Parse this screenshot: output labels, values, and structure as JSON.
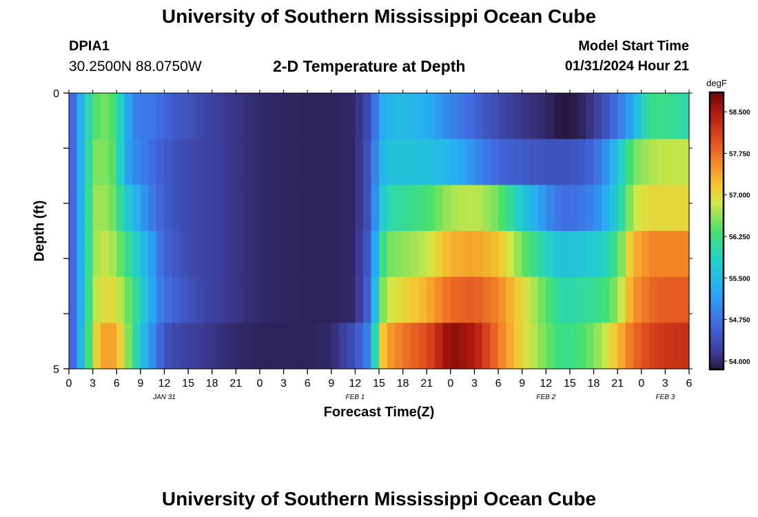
{
  "header": {
    "title": "University of Southern Mississippi Ocean Cube",
    "station": "DPIA1",
    "coords": "30.2500N  88.0750W",
    "subtitle": "2-D Temperature at Depth",
    "start_label": "Model Start Time",
    "start_value": "01/31/2024 Hour 21"
  },
  "footer": {
    "title": "University of Southern Mississippi Ocean Cube"
  },
  "chart_data": {
    "type": "heatmap",
    "title": "2-D Temperature at Depth",
    "xlabel": "Forecast Time(Z)",
    "ylabel": "Depth (ft)",
    "x_tick_labels": [
      "0",
      "3",
      "6",
      "9",
      "12",
      "15",
      "18",
      "21",
      "0",
      "3",
      "6",
      "9",
      "12",
      "15",
      "18",
      "21",
      "0",
      "3",
      "6",
      "9",
      "12",
      "15",
      "18",
      "21",
      "0",
      "3",
      "6"
    ],
    "date_labels": [
      {
        "label": "JAN 31",
        "at_tick": 4
      },
      {
        "label": "FEB 1",
        "at_tick": 12
      },
      {
        "label": "FEB 2",
        "at_tick": 20
      },
      {
        "label": "FEB 3",
        "at_tick": 25
      }
    ],
    "y_tick_labels": [
      "0",
      "",
      "",
      "",
      "",
      "5"
    ],
    "depth_range": [
      0,
      5
    ],
    "forecast_hours_range": [
      0,
      78
    ],
    "colorbar": {
      "unit": "degF",
      "min": 53.85,
      "max": 58.85,
      "ticks": [
        54.0,
        54.75,
        55.5,
        56.25,
        57.0,
        57.75,
        58.5
      ],
      "tick_labels": [
        "54.000",
        "54.750",
        "55.500",
        "56.250",
        "57.000",
        "57.750",
        "58.500"
      ]
    },
    "forecast_hour_anchors": [
      0,
      1,
      2,
      3,
      4,
      5,
      6,
      7,
      8,
      9,
      10,
      11,
      12,
      15,
      18,
      21,
      24,
      30,
      33,
      36,
      38,
      39,
      40,
      42,
      45,
      48,
      51,
      54,
      57,
      60,
      62,
      63,
      65,
      67,
      69,
      71,
      72,
      73,
      75,
      78
    ],
    "layers": [
      {
        "depth": "0-1",
        "values": [
          54.3,
          55.0,
          55.7,
          56.3,
          56.5,
          56.5,
          56.2,
          55.5,
          54.9,
          54.8,
          54.8,
          54.75,
          54.6,
          54.4,
          54.2,
          54.1,
          54.0,
          53.95,
          53.95,
          54.0,
          54.4,
          55.1,
          55.4,
          55.5,
          55.3,
          54.9,
          54.6,
          54.3,
          54.1,
          54.0,
          53.85,
          53.85,
          54.0,
          54.3,
          54.7,
          55.3,
          55.8,
          56.2,
          56.2,
          56.0
        ]
      },
      {
        "depth": "1-2",
        "values": [
          54.3,
          55.0,
          55.7,
          56.5,
          56.6,
          56.5,
          56.3,
          55.3,
          55.0,
          54.9,
          54.75,
          54.6,
          54.5,
          54.3,
          54.2,
          54.1,
          54.0,
          53.95,
          53.95,
          54.0,
          54.5,
          55.3,
          55.6,
          55.6,
          55.6,
          55.4,
          55.0,
          54.6,
          54.5,
          54.4,
          54.4,
          54.4,
          54.5,
          54.8,
          55.6,
          56.5,
          56.6,
          56.7,
          56.8,
          56.8
        ]
      },
      {
        "depth": "2-3",
        "values": [
          54.3,
          55.0,
          55.7,
          56.6,
          56.7,
          56.6,
          56.4,
          55.8,
          55.5,
          55.2,
          54.9,
          54.7,
          54.5,
          54.3,
          54.2,
          54.1,
          54.0,
          53.95,
          53.95,
          54.0,
          54.5,
          55.5,
          56.0,
          56.1,
          56.3,
          56.7,
          56.8,
          56.5,
          55.7,
          55.0,
          54.7,
          54.7,
          54.8,
          55.1,
          55.8,
          56.8,
          56.9,
          57.0,
          57.0,
          57.0
        ]
      },
      {
        "depth": "3-4",
        "values": [
          54.3,
          55.0,
          55.7,
          56.6,
          56.8,
          56.8,
          56.6,
          56.3,
          56.0,
          55.6,
          55.3,
          54.9,
          54.6,
          54.3,
          54.2,
          54.1,
          54.0,
          53.95,
          53.95,
          54.0,
          54.6,
          55.9,
          56.5,
          56.6,
          56.8,
          57.3,
          57.4,
          57.2,
          56.5,
          55.9,
          55.6,
          55.6,
          55.7,
          55.8,
          56.3,
          57.3,
          57.4,
          57.6,
          57.6,
          57.6
        ]
      },
      {
        "depth": "4-5",
        "values": [
          54.3,
          55.0,
          55.7,
          56.7,
          56.9,
          57.0,
          56.9,
          56.6,
          56.3,
          55.9,
          55.4,
          55.0,
          54.7,
          54.4,
          54.2,
          54.1,
          54.0,
          53.95,
          53.95,
          54.0,
          54.7,
          56.3,
          56.8,
          57.0,
          57.3,
          57.8,
          57.9,
          57.6,
          57.0,
          56.4,
          56.0,
          56.0,
          56.1,
          56.2,
          56.6,
          57.5,
          57.6,
          57.8,
          57.9,
          57.9
        ]
      },
      {
        "depth": "5",
        "values": [
          54.3,
          55.0,
          55.8,
          56.8,
          57.3,
          57.5,
          57.3,
          56.8,
          56.3,
          55.7,
          55.2,
          54.8,
          54.4,
          54.2,
          54.1,
          54.0,
          53.95,
          53.95,
          54.0,
          54.4,
          55.0,
          56.9,
          57.4,
          57.7,
          58.0,
          58.7,
          58.5,
          57.7,
          57.0,
          56.5,
          56.2,
          56.2,
          56.4,
          56.7,
          57.2,
          57.8,
          57.9,
          58.1,
          58.2,
          58.3
        ]
      }
    ]
  }
}
